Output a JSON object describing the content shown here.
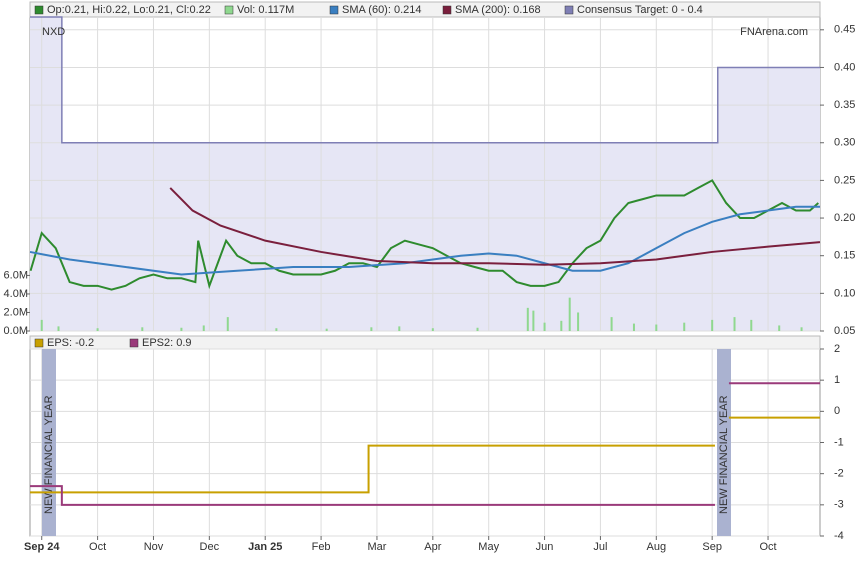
{
  "chart_data": [
    {
      "type": "line",
      "title": "NXD",
      "source": "FNArena.com",
      "xlim": [
        -0.21,
        13.93
      ],
      "ylim": [
        0.05,
        0.467
      ],
      "yticks": [
        0.05,
        {
          "value": 0.1,
          "label": "0.10"
        },
        0.15,
        {
          "value": 0.2,
          "label": "0.20"
        },
        0.25,
        {
          "value": 0.3,
          "label": "0.30"
        },
        0.35,
        {
          "value": 0.4,
          "label": "0.40"
        },
        0.45
      ],
      "y2lim": [
        0,
        33900000
      ],
      "y2ticks": [
        {
          "value": 0,
          "label": "0.0M"
        },
        {
          "value": 2000000,
          "label": "2.0M"
        },
        {
          "value": 4000000,
          "label": "4.0M"
        },
        {
          "value": 6000000,
          "label": "6.0M"
        }
      ],
      "grid": true,
      "series": [
        {
          "name": "Consensus Target: 0 - 0.4",
          "type": "area",
          "color": "#7f7fb5",
          "x": [
            -0.21,
            0.36,
            0.36,
            12.1,
            12.1,
            13.93
          ],
          "values": [
            0.467,
            0.467,
            0.3,
            0.3,
            0.4,
            0.4
          ]
        },
        {
          "name": "Vol: 0.117M",
          "type": "bar",
          "axis": "y2",
          "color": "#8fd88f",
          "x": [
            0.0,
            0.3,
            1.0,
            1.8,
            2.5,
            2.9,
            3.33,
            4.2,
            5.1,
            5.9,
            6.4,
            7.0,
            7.8,
            8.7,
            8.8,
            9.0,
            9.3,
            9.45,
            9.6,
            10.2,
            10.6,
            11.0,
            11.5,
            12.0,
            12.4,
            12.7,
            13.2,
            13.6
          ],
          "values": [
            1200000,
            500000,
            300000,
            400000,
            350000,
            600000,
            1500000,
            300000,
            250000,
            400000,
            500000,
            300000,
            350000,
            2500000,
            2200000,
            900000,
            1100000,
            3600000,
            2000000,
            1500000,
            800000,
            700000,
            900000,
            1200000,
            1500000,
            1200000,
            600000,
            400000
          ]
        },
        {
          "name": "Op:0.21, Hi:0.22, Lo:0.21, Cl:0.22",
          "type": "line",
          "color": "#2e8b2e",
          "x": [
            -0.2,
            0.0,
            0.25,
            0.5,
            0.75,
            1.0,
            1.25,
            1.5,
            1.75,
            2.0,
            2.25,
            2.5,
            2.75,
            2.8,
            3.0,
            3.3,
            3.5,
            3.75,
            4.0,
            4.25,
            4.5,
            4.75,
            5.0,
            5.25,
            5.5,
            5.75,
            6.0,
            6.25,
            6.5,
            6.75,
            7.0,
            7.25,
            7.5,
            7.75,
            8.0,
            8.25,
            8.5,
            8.75,
            9.0,
            9.25,
            9.5,
            9.75,
            10.0,
            10.25,
            10.5,
            10.75,
            11.0,
            11.25,
            11.5,
            11.75,
            12.0,
            12.25,
            12.5,
            12.75,
            13.0,
            13.25,
            13.5,
            13.75,
            13.9
          ],
          "values": [
            0.13,
            0.18,
            0.16,
            0.115,
            0.11,
            0.11,
            0.105,
            0.11,
            0.12,
            0.125,
            0.12,
            0.12,
            0.115,
            0.17,
            0.11,
            0.17,
            0.15,
            0.14,
            0.14,
            0.13,
            0.125,
            0.125,
            0.125,
            0.13,
            0.14,
            0.14,
            0.135,
            0.16,
            0.17,
            0.165,
            0.16,
            0.15,
            0.14,
            0.135,
            0.13,
            0.13,
            0.115,
            0.11,
            0.11,
            0.115,
            0.14,
            0.16,
            0.17,
            0.2,
            0.22,
            0.225,
            0.23,
            0.23,
            0.23,
            0.24,
            0.25,
            0.22,
            0.2,
            0.2,
            0.21,
            0.22,
            0.21,
            0.21,
            0.22
          ]
        },
        {
          "name": "SMA (60): 0.214",
          "type": "line",
          "color": "#3a7fc1",
          "x": [
            -0.21,
            0.5,
            1.5,
            2.5,
            3.5,
            4.5,
            5.5,
            6.5,
            7.5,
            8.0,
            8.5,
            9.0,
            9.5,
            10.0,
            10.5,
            11.0,
            11.5,
            12.0,
            12.5,
            13.0,
            13.5,
            13.93
          ],
          "values": [
            0.155,
            0.145,
            0.135,
            0.125,
            0.13,
            0.135,
            0.135,
            0.14,
            0.15,
            0.153,
            0.15,
            0.14,
            0.13,
            0.13,
            0.14,
            0.16,
            0.18,
            0.195,
            0.205,
            0.21,
            0.215,
            0.215
          ]
        },
        {
          "name": "SMA (200): 0.168",
          "type": "line",
          "color": "#7a1f3d",
          "x": [
            2.3,
            2.7,
            3.2,
            4.0,
            5.0,
            6.0,
            7.0,
            8.0,
            9.0,
            10.0,
            11.0,
            12.0,
            13.0,
            13.93
          ],
          "values": [
            0.24,
            0.21,
            0.19,
            0.17,
            0.155,
            0.143,
            0.14,
            0.14,
            0.138,
            0.14,
            0.145,
            0.155,
            0.162,
            0.168
          ]
        }
      ]
    },
    {
      "type": "line",
      "xlim": [
        -0.21,
        13.93
      ],
      "xticks": [
        {
          "value": 0,
          "label": "Sep 24"
        },
        {
          "value": 1,
          "label": "Oct"
        },
        {
          "value": 2,
          "label": "Nov"
        },
        {
          "value": 3,
          "label": "Dec"
        },
        {
          "value": 4,
          "label": "Jan 25"
        },
        {
          "value": 5,
          "label": "Feb"
        },
        {
          "value": 6,
          "label": "Mar"
        },
        {
          "value": 7,
          "label": "Apr"
        },
        {
          "value": 8,
          "label": "May"
        },
        {
          "value": 9,
          "label": "Jun"
        },
        {
          "value": 10,
          "label": "Jul"
        },
        {
          "value": 11,
          "label": "Aug"
        },
        {
          "value": 12,
          "label": "Sep"
        },
        {
          "value": 13,
          "label": "Oct"
        }
      ],
      "ylim": [
        -4,
        2
      ],
      "yticks": [
        -4,
        -3,
        -2,
        -1,
        0,
        1,
        2
      ],
      "grid": true,
      "annotations": [
        "NEW FINANCIAL YEAR",
        "NEW FINANCIAL YEAR"
      ],
      "series": [
        {
          "name": "EPS: -0.2",
          "type": "line",
          "color": "#c8a000",
          "x": [
            -0.21,
            5.85,
            5.85,
            12.05,
            12.2,
            12.3,
            13.93
          ],
          "values": [
            -2.6,
            -2.6,
            -1.1,
            -1.1,
            null,
            -0.2,
            -0.2
          ]
        },
        {
          "name": "EPS2: 0.9",
          "type": "line",
          "color": "#9a3a7a",
          "x": [
            -0.21,
            0.36,
            0.36,
            12.05,
            12.2,
            12.3,
            13.93
          ],
          "values": [
            -2.4,
            -2.4,
            -3,
            -3,
            null,
            0.9,
            0.9
          ]
        }
      ]
    }
  ]
}
